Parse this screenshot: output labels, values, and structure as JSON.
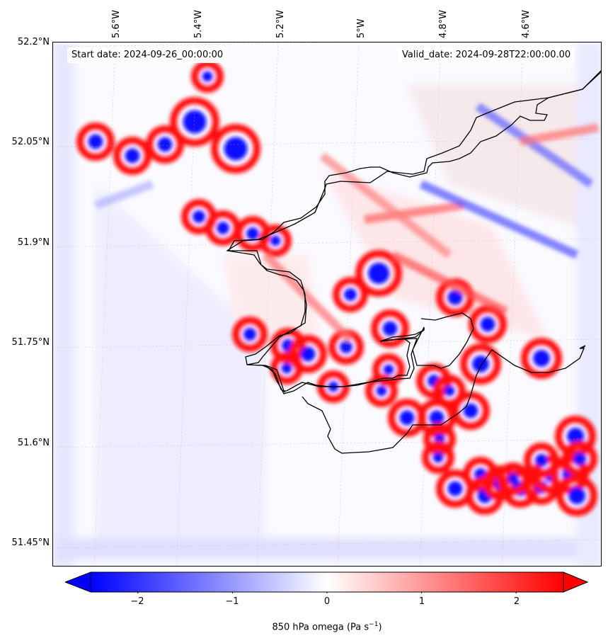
{
  "map": {
    "start_date": "Start date: 2024-09-26_00:00:00",
    "valid_date": "Valid_date: 2024-09-28T22:00:00.00",
    "lat_labels": [
      "52.2°N",
      "52.05°N",
      "51.9°N",
      "51.75°N",
      "51.6°N",
      "51.45°N"
    ],
    "lon_labels": [
      "5.6°W",
      "5.4°W",
      "5.2°W",
      "5°W",
      "4.8°W",
      "4.6°W"
    ],
    "field": "850 hPa omega",
    "coastline_color": "#000000",
    "colormap": "bwr"
  },
  "colorbar": {
    "ticks": [
      "−2",
      "−1",
      "0",
      "1",
      "2"
    ],
    "label_text": "850 hPa omega (Pa s",
    "label_exponent": "−1",
    "label_close": ")",
    "range": [
      -2.5,
      2.5
    ],
    "extend": "both",
    "low_color": "#0000ff",
    "mid_color": "#ffffff",
    "high_color": "#ff0000"
  }
}
